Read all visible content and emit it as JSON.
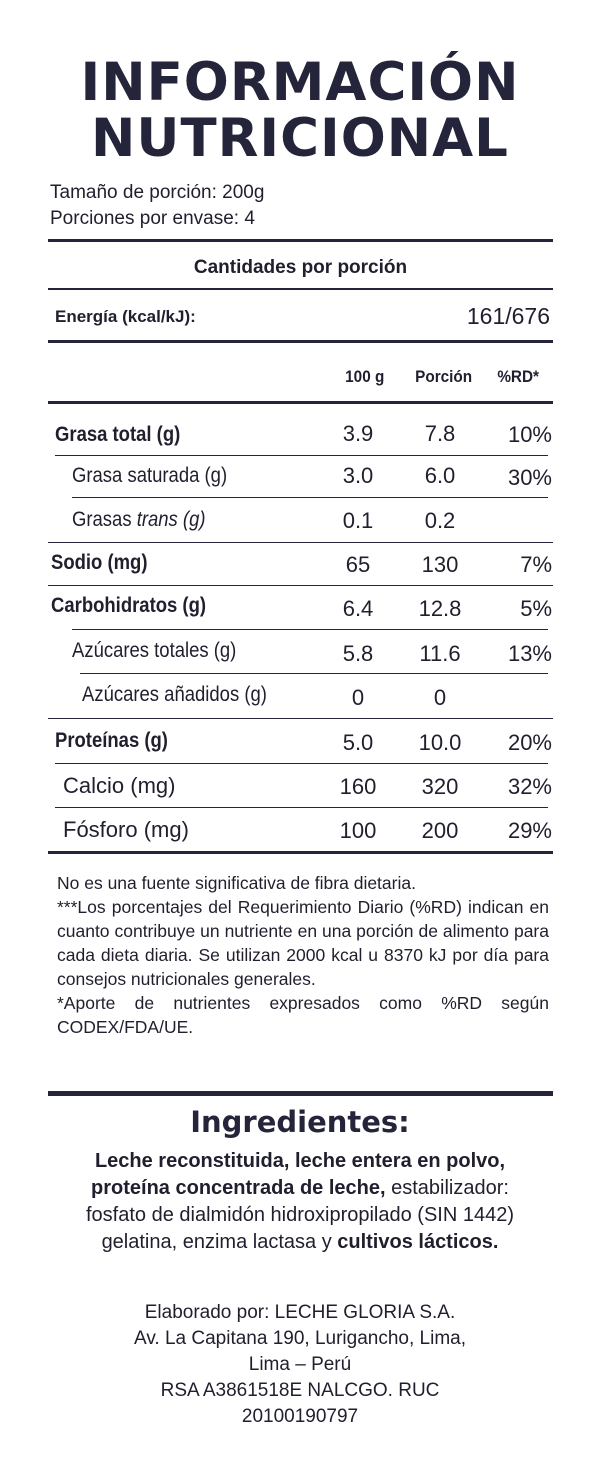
{
  "title": {
    "line1": "INFORMACIÓN",
    "line2": "NUTRICIONAL"
  },
  "serving": {
    "size": "Tamaño de porción: 200g",
    "per_container": "Porciones por envase: 4"
  },
  "amounts_header": "Cantidades por porción",
  "energy": {
    "label": "Energía (kcal/kJ):",
    "value": "161/676"
  },
  "columns": {
    "per100": "100 g",
    "portion": "Porción",
    "rd": "%RD*"
  },
  "nutrients": [
    {
      "label": "Grasa total (g)",
      "v100": "3.9",
      "portion": "7.8",
      "rd": "10%"
    },
    {
      "label": "Grasa saturada (g)",
      "v100": "3.0",
      "portion": "6.0",
      "rd": "30%"
    },
    {
      "label_prefix": "Grasas ",
      "label_italic": "trans (g)",
      "v100": "0.1",
      "portion": "0.2",
      "rd": ""
    },
    {
      "label": "Sodio (mg)",
      "v100": "65",
      "portion": "130",
      "rd": "7%"
    },
    {
      "label": "Carbohidratos (g)",
      "v100": "6.4",
      "portion": "12.8",
      "rd": "5%"
    },
    {
      "label": "Azúcares totales (g)",
      "v100": "5.8",
      "portion": "11.6",
      "rd": "13%"
    },
    {
      "label": "Azúcares añadidos (g)",
      "v100": "0",
      "portion": "0",
      "rd": ""
    },
    {
      "label": "Proteínas (g)",
      "v100": "5.0",
      "portion": "10.0",
      "rd": "20%"
    },
    {
      "label": "Calcio (mg)",
      "v100": "160",
      "portion": "320",
      "rd": "32%"
    },
    {
      "label": "Fósforo (mg)",
      "v100": "100",
      "portion": "200",
      "rd": "29%"
    }
  ],
  "notes": {
    "fiber": "No es una fuente significativa de fibra dietaria.",
    "rd": "***Los porcentajes del Requerimiento Diario (%RD) indican en cuanto contribuye un nutriente en una porción de alimento para cada dieta diaria. Se utilizan 2000 kcal u 8370 kJ por día para consejos nutricionales generales.",
    "codex": "*Aporte de nutrientes expresados como %RD según CODEX/FDA/UE."
  },
  "ingredients": {
    "title": "Ingredientes:",
    "bold1": "Leche reconstituida, leche entera en polvo, proteína concentrada de leche,",
    "regular": " estabilizador: fosfato de dialmidón hidroxipropilado (SIN 1442) gelatina, enzima lactasa y ",
    "bold2": "cultivos lácticos."
  },
  "producer": {
    "line1": "Elaborado por: LECHE GLORIA S.A.",
    "line2": "Av. La Capitana 190, Lurigancho, Lima,",
    "line3": "Lima – Perú",
    "line4": "RSA A3861518E NALCGO. RUC",
    "line5": "20100190797"
  }
}
